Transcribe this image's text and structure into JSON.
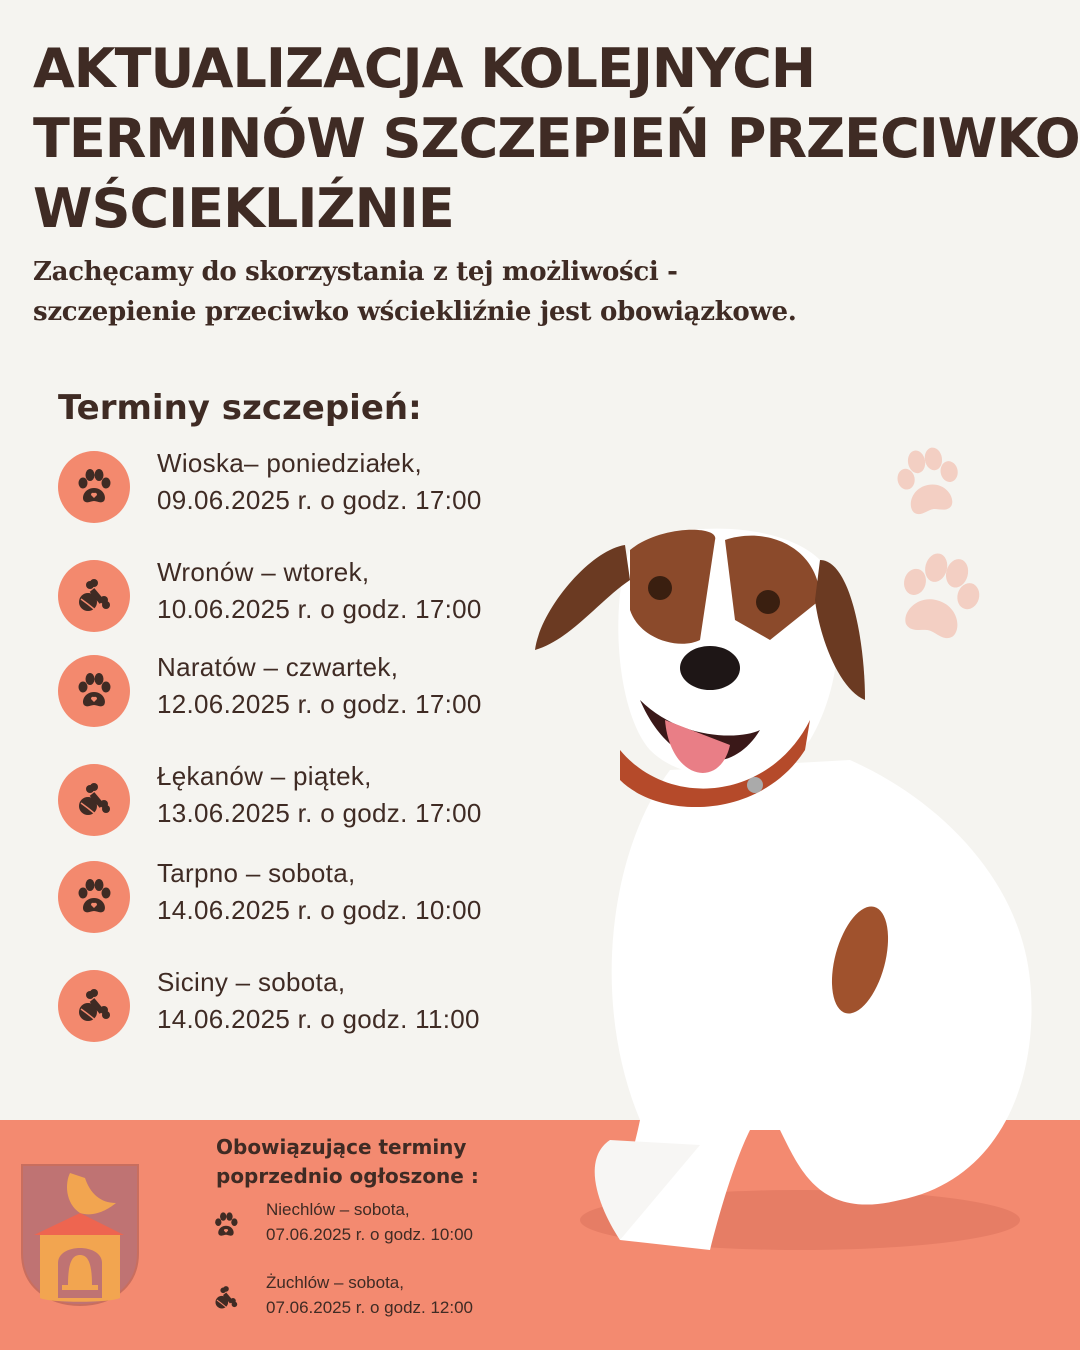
{
  "header": {
    "title_lines": [
      "AKTUALIZACJA KOLEJNYCH",
      "TERMINÓW SZCZEPIEŃ PRZECIWKO",
      "WŚCIEKLIŹNIE"
    ],
    "subtitle_lines": [
      "Zachęcamy do skorzystania z tej możliwości -",
      "szczepienie przeciwko wściekliźnie jest obowiązkowe."
    ]
  },
  "schedule": {
    "heading": "Terminy szczepień:",
    "entries": [
      {
        "line1": "Wioska– poniedziałek,",
        "line2": "09.06.2025 r. o godz. 17:00",
        "icon": "paw-icon"
      },
      {
        "line1": "Wronów – wtorek,",
        "line2": "10.06.2025 r. o godz. 17:00",
        "icon": "bone-ball-icon"
      },
      {
        "line1": "Naratów – czwartek,",
        "line2": "12.06.2025 r. o godz. 17:00",
        "icon": "paw-icon"
      },
      {
        "line1": "Łękanów – piątek,",
        "line2": "13.06.2025 r. o godz. 17:00",
        "icon": "bone-ball-icon"
      },
      {
        "line1": "Tarpno  – sobota,",
        "line2": "14.06.2025 r. o godz. 10:00",
        "icon": "paw-icon"
      },
      {
        "line1": "Siciny – sobota,",
        "line2": "14.06.2025 r. o godz. 11:00",
        "icon": "bone-ball-icon"
      }
    ]
  },
  "previous": {
    "heading_lines": [
      "Obowiązujące terminy",
      "poprzednio ogłoszone :"
    ],
    "entries": [
      {
        "line1": "Niechlów  – sobota,",
        "line2": "07.06.2025 r. o godz. 10:00",
        "icon": "paw-icon"
      },
      {
        "line1": "Żuchlów – sobota,",
        "line2": "07.06.2025 r. o godz. 12:00",
        "icon": "bone-ball-icon"
      }
    ]
  },
  "colors": {
    "background": "#f5f4f0",
    "text": "#3f2b24",
    "accent": "#f3896e",
    "band": "#f38a70"
  }
}
